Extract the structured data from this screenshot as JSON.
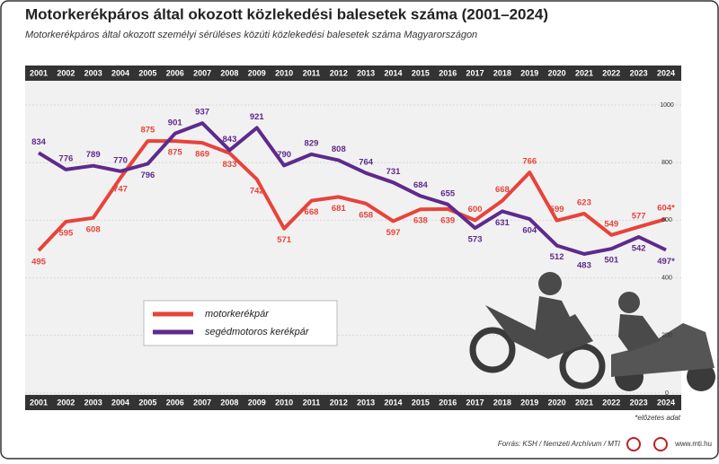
{
  "chart_data": {
    "type": "line",
    "title": "Motorkerékpáros által okozott közlekedési balesetek száma (2001–2024)",
    "subtitle": "Motorkerékpáros által okozott személyi sérüléses közúti közlekedési balesetek száma Magyarországon",
    "categories": [
      "2001",
      "2002",
      "2003",
      "2004",
      "2005",
      "2006",
      "2007",
      "2008",
      "2009",
      "2010",
      "2011",
      "2012",
      "2013",
      "2014",
      "2015",
      "2016",
      "2017",
      "2018",
      "2019",
      "2020",
      "2021",
      "2022",
      "2023",
      "2024"
    ],
    "series": [
      {
        "name": "motorkerékpár",
        "color": "#e8433a",
        "values": [
          495,
          595,
          608,
          747,
          875,
          875,
          869,
          833,
          742,
          571,
          668,
          681,
          658,
          597,
          638,
          639,
          600,
          668,
          766,
          599,
          623,
          549,
          577,
          604
        ],
        "value_labels": [
          "495",
          "595",
          "608",
          "747",
          "875",
          "875",
          "869",
          "833",
          "742",
          "571",
          "668",
          "681",
          "658",
          "597",
          "638",
          "639",
          "600",
          "668",
          "766",
          "599",
          "623",
          "549",
          "577",
          "604*"
        ]
      },
      {
        "name": "segédmotoros kerékpár",
        "color": "#5e2a8c",
        "values": [
          834,
          776,
          789,
          770,
          796,
          901,
          937,
          843,
          921,
          790,
          829,
          808,
          764,
          731,
          684,
          655,
          573,
          631,
          604,
          512,
          483,
          501,
          542,
          497
        ],
        "value_labels": [
          "834",
          "776",
          "789",
          "770",
          "796",
          "901",
          "937",
          "843",
          "921",
          "790",
          "829",
          "808",
          "764",
          "731",
          "684",
          "655",
          "573",
          "631",
          "604",
          "512",
          "483",
          "501",
          "542",
          "497*"
        ]
      }
    ],
    "ylim": [
      0,
      1000
    ],
    "yticks": [
      0,
      200,
      400,
      600,
      800,
      1000
    ],
    "grid": true,
    "legend": "bottom-left",
    "footnote": "*előzetes adat",
    "source": "Forrás: KSH / Nemzeti Archívum / MTI",
    "website": "www.mti.hu"
  }
}
